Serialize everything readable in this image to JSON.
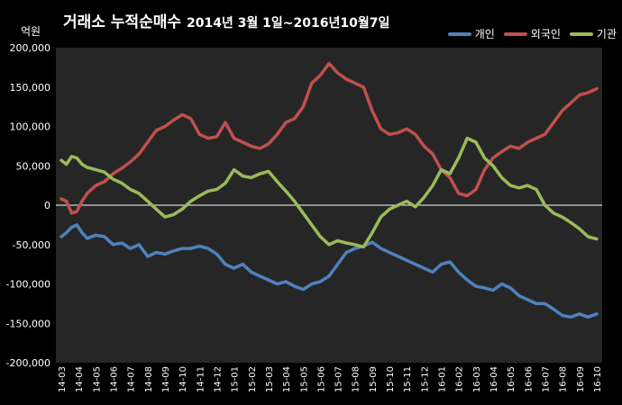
{
  "header": {
    "title_main": "거래소 누적순매수",
    "title_period": "2014년 3월 1일~2016년10월7일",
    "unit": "억원"
  },
  "chart_data": {
    "type": "line",
    "title": "거래소 누적순매수 2014년 3월 1일~2016년10월7일",
    "ylabel": "억원",
    "ylim": [
      -200000,
      200000
    ],
    "yticks": [
      200000,
      150000,
      100000,
      50000,
      0,
      -50000,
      -100000,
      -150000,
      -200000
    ],
    "ytick_labels": [
      "200,000",
      "150,000",
      "100,000",
      "50,000",
      "0",
      "-50,000",
      "-100,000",
      "-150,000",
      "-200,000"
    ],
    "categories": [
      "14-03",
      "14-04",
      "14-05",
      "14-06",
      "14-07",
      "14-08",
      "14-09",
      "14-10",
      "14-11",
      "14-12",
      "15-01",
      "15-02",
      "15-03",
      "15-04",
      "15-05",
      "15-06",
      "15-07",
      "15-08",
      "15-09",
      "15-10",
      "15-11",
      "15-12",
      "16-01",
      "16-02",
      "16-03",
      "16-04",
      "16-05",
      "16-06",
      "16-07",
      "16-08",
      "16-09",
      "16-10"
    ],
    "grid": false,
    "legend_position": "top-right",
    "series": [
      {
        "name": "개인",
        "color": "#4f81bd",
        "points": [
          [
            0,
            -40000
          ],
          [
            0.3,
            -35000
          ],
          [
            0.6,
            -28000
          ],
          [
            0.9,
            -25000
          ],
          [
            1.2,
            -35000
          ],
          [
            1.5,
            -42000
          ],
          [
            2,
            -38000
          ],
          [
            2.5,
            -40000
          ],
          [
            3,
            -50000
          ],
          [
            3.5,
            -48000
          ],
          [
            4,
            -55000
          ],
          [
            4.5,
            -50000
          ],
          [
            5,
            -65000
          ],
          [
            5.5,
            -60000
          ],
          [
            6,
            -62000
          ],
          [
            6.5,
            -58000
          ],
          [
            7,
            -55000
          ],
          [
            7.5,
            -55000
          ],
          [
            8,
            -52000
          ],
          [
            8.5,
            -55000
          ],
          [
            9,
            -62000
          ],
          [
            9.5,
            -75000
          ],
          [
            10,
            -80000
          ],
          [
            10.5,
            -75000
          ],
          [
            11,
            -85000
          ],
          [
            11.5,
            -90000
          ],
          [
            12,
            -95000
          ],
          [
            12.5,
            -100000
          ],
          [
            13,
            -97000
          ],
          [
            13.5,
            -103000
          ],
          [
            14,
            -107000
          ],
          [
            14.5,
            -100000
          ],
          [
            15,
            -97000
          ],
          [
            15.5,
            -90000
          ],
          [
            16,
            -75000
          ],
          [
            16.5,
            -60000
          ],
          [
            17,
            -55000
          ],
          [
            17.5,
            -52000
          ],
          [
            18,
            -47000
          ],
          [
            18.5,
            -55000
          ],
          [
            19,
            -60000
          ],
          [
            19.5,
            -65000
          ],
          [
            20,
            -70000
          ],
          [
            20.5,
            -75000
          ],
          [
            21,
            -80000
          ],
          [
            21.5,
            -85000
          ],
          [
            22,
            -75000
          ],
          [
            22.5,
            -72000
          ],
          [
            23,
            -85000
          ],
          [
            23.5,
            -95000
          ],
          [
            24,
            -103000
          ],
          [
            24.5,
            -105000
          ],
          [
            25,
            -108000
          ],
          [
            25.5,
            -100000
          ],
          [
            26,
            -105000
          ],
          [
            26.5,
            -115000
          ],
          [
            27,
            -120000
          ],
          [
            27.5,
            -125000
          ],
          [
            28,
            -125000
          ],
          [
            28.5,
            -132000
          ],
          [
            29,
            -140000
          ],
          [
            29.5,
            -142000
          ],
          [
            30,
            -138000
          ],
          [
            30.5,
            -142000
          ],
          [
            31,
            -138000
          ]
        ]
      },
      {
        "name": "외국인",
        "color": "#c0504d",
        "points": [
          [
            0,
            8000
          ],
          [
            0.3,
            5000
          ],
          [
            0.6,
            -10000
          ],
          [
            0.9,
            -8000
          ],
          [
            1.2,
            5000
          ],
          [
            1.5,
            15000
          ],
          [
            2,
            25000
          ],
          [
            2.5,
            30000
          ],
          [
            3,
            40000
          ],
          [
            3.5,
            47000
          ],
          [
            4,
            55000
          ],
          [
            4.5,
            65000
          ],
          [
            5,
            80000
          ],
          [
            5.5,
            95000
          ],
          [
            6,
            100000
          ],
          [
            6.5,
            108000
          ],
          [
            7,
            115000
          ],
          [
            7.5,
            110000
          ],
          [
            8,
            90000
          ],
          [
            8.5,
            85000
          ],
          [
            9,
            87000
          ],
          [
            9.5,
            105000
          ],
          [
            10,
            85000
          ],
          [
            10.5,
            80000
          ],
          [
            11,
            75000
          ],
          [
            11.5,
            72000
          ],
          [
            12,
            78000
          ],
          [
            12.5,
            90000
          ],
          [
            13,
            105000
          ],
          [
            13.5,
            110000
          ],
          [
            14,
            125000
          ],
          [
            14.5,
            155000
          ],
          [
            15,
            165000
          ],
          [
            15.5,
            180000
          ],
          [
            16,
            168000
          ],
          [
            16.5,
            160000
          ],
          [
            17,
            155000
          ],
          [
            17.5,
            150000
          ],
          [
            18,
            120000
          ],
          [
            18.5,
            97000
          ],
          [
            19,
            90000
          ],
          [
            19.5,
            92000
          ],
          [
            20,
            97000
          ],
          [
            20.5,
            90000
          ],
          [
            21,
            75000
          ],
          [
            21.5,
            65000
          ],
          [
            22,
            45000
          ],
          [
            22.5,
            35000
          ],
          [
            23,
            15000
          ],
          [
            23.5,
            12000
          ],
          [
            24,
            20000
          ],
          [
            24.5,
            45000
          ],
          [
            25,
            60000
          ],
          [
            25.5,
            68000
          ],
          [
            26,
            75000
          ],
          [
            26.5,
            72000
          ],
          [
            27,
            80000
          ],
          [
            27.5,
            85000
          ],
          [
            28,
            90000
          ],
          [
            28.5,
            105000
          ],
          [
            29,
            120000
          ],
          [
            29.5,
            130000
          ],
          [
            30,
            140000
          ],
          [
            30.5,
            143000
          ],
          [
            31,
            148000
          ]
        ]
      },
      {
        "name": "기관",
        "color": "#9bbb59",
        "points": [
          [
            0,
            57000
          ],
          [
            0.3,
            52000
          ],
          [
            0.6,
            62000
          ],
          [
            0.9,
            60000
          ],
          [
            1.2,
            52000
          ],
          [
            1.5,
            48000
          ],
          [
            2,
            45000
          ],
          [
            2.5,
            42000
          ],
          [
            3,
            33000
          ],
          [
            3.5,
            28000
          ],
          [
            4,
            20000
          ],
          [
            4.5,
            15000
          ],
          [
            5,
            5000
          ],
          [
            5.5,
            -5000
          ],
          [
            6,
            -15000
          ],
          [
            6.5,
            -12000
          ],
          [
            7,
            -5000
          ],
          [
            7.5,
            5000
          ],
          [
            8,
            12000
          ],
          [
            8.5,
            18000
          ],
          [
            9,
            20000
          ],
          [
            9.5,
            28000
          ],
          [
            10,
            45000
          ],
          [
            10.5,
            37000
          ],
          [
            11,
            35000
          ],
          [
            11.5,
            40000
          ],
          [
            12,
            43000
          ],
          [
            12.5,
            30000
          ],
          [
            13,
            18000
          ],
          [
            13.5,
            5000
          ],
          [
            14,
            -10000
          ],
          [
            14.5,
            -25000
          ],
          [
            15,
            -40000
          ],
          [
            15.5,
            -50000
          ],
          [
            16,
            -45000
          ],
          [
            16.5,
            -48000
          ],
          [
            17,
            -50000
          ],
          [
            17.5,
            -53000
          ],
          [
            18,
            -35000
          ],
          [
            18.5,
            -15000
          ],
          [
            19,
            -5000
          ],
          [
            19.5,
            0
          ],
          [
            20,
            5000
          ],
          [
            20.5,
            -2000
          ],
          [
            21,
            10000
          ],
          [
            21.5,
            25000
          ],
          [
            22,
            45000
          ],
          [
            22.5,
            40000
          ],
          [
            23,
            60000
          ],
          [
            23.5,
            85000
          ],
          [
            24,
            80000
          ],
          [
            24.5,
            60000
          ],
          [
            25,
            50000
          ],
          [
            25.5,
            35000
          ],
          [
            26,
            25000
          ],
          [
            26.5,
            22000
          ],
          [
            27,
            25000
          ],
          [
            27.5,
            20000
          ],
          [
            28,
            0
          ],
          [
            28.5,
            -10000
          ],
          [
            29,
            -15000
          ],
          [
            29.5,
            -22000
          ],
          [
            30,
            -30000
          ],
          [
            30.5,
            -40000
          ],
          [
            31,
            -43000
          ]
        ]
      }
    ]
  }
}
